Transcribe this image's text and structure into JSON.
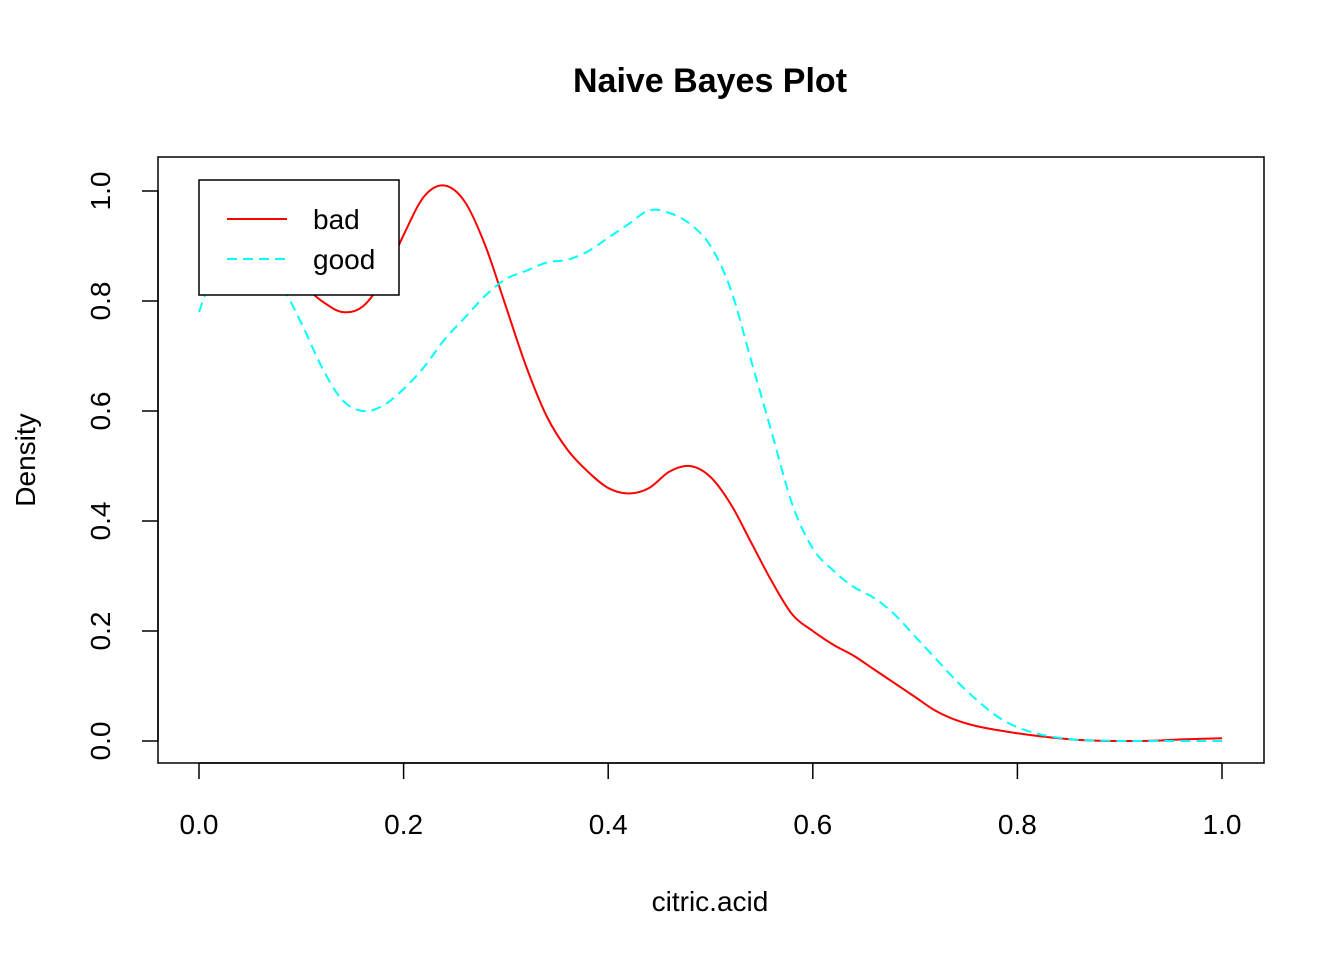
{
  "chart_data": {
    "type": "line",
    "title": "Naive Bayes Plot",
    "xlabel": "citric.acid",
    "ylabel": "Density",
    "xlim": [
      0.0,
      1.0
    ],
    "ylim": [
      0.0,
      1.0
    ],
    "x_ticks": [
      "0.0",
      "0.2",
      "0.4",
      "0.6",
      "0.8",
      "1.0"
    ],
    "y_ticks": [
      "0.0",
      "0.2",
      "0.4",
      "0.6",
      "0.8",
      "1.0"
    ],
    "grid": false,
    "legend_position": "top-left",
    "series": [
      {
        "name": "bad",
        "color": "#ff0000",
        "dash": "solid",
        "points": [
          [
            0.0,
            0.93
          ],
          [
            0.02,
            0.92
          ],
          [
            0.04,
            0.9
          ],
          [
            0.06,
            0.88
          ],
          [
            0.08,
            0.85
          ],
          [
            0.1,
            0.83
          ],
          [
            0.12,
            0.8
          ],
          [
            0.14,
            0.78
          ],
          [
            0.16,
            0.79
          ],
          [
            0.18,
            0.84
          ],
          [
            0.2,
            0.92
          ],
          [
            0.22,
            0.99
          ],
          [
            0.24,
            1.01
          ],
          [
            0.26,
            0.98
          ],
          [
            0.28,
            0.9
          ],
          [
            0.3,
            0.79
          ],
          [
            0.32,
            0.68
          ],
          [
            0.34,
            0.59
          ],
          [
            0.36,
            0.53
          ],
          [
            0.38,
            0.49
          ],
          [
            0.4,
            0.46
          ],
          [
            0.42,
            0.45
          ],
          [
            0.44,
            0.46
          ],
          [
            0.46,
            0.49
          ],
          [
            0.48,
            0.5
          ],
          [
            0.5,
            0.48
          ],
          [
            0.52,
            0.43
          ],
          [
            0.54,
            0.36
          ],
          [
            0.56,
            0.29
          ],
          [
            0.58,
            0.23
          ],
          [
            0.6,
            0.2
          ],
          [
            0.62,
            0.175
          ],
          [
            0.64,
            0.155
          ],
          [
            0.66,
            0.13
          ],
          [
            0.68,
            0.105
          ],
          [
            0.7,
            0.08
          ],
          [
            0.72,
            0.055
          ],
          [
            0.74,
            0.038
          ],
          [
            0.76,
            0.027
          ],
          [
            0.78,
            0.02
          ],
          [
            0.8,
            0.014
          ],
          [
            0.82,
            0.009
          ],
          [
            0.84,
            0.005
          ],
          [
            0.86,
            0.002
          ],
          [
            0.88,
            0.0005
          ],
          [
            0.9,
            0.0
          ],
          [
            0.92,
            0.0
          ],
          [
            0.94,
            0.001
          ],
          [
            0.96,
            0.003
          ],
          [
            0.98,
            0.004
          ],
          [
            1.0,
            0.005
          ]
        ]
      },
      {
        "name": "good",
        "color": "#00ffff",
        "dash": "dashed",
        "points": [
          [
            0.0,
            0.78
          ],
          [
            0.01,
            0.83
          ],
          [
            0.02,
            0.86
          ],
          [
            0.04,
            0.88
          ],
          [
            0.06,
            0.87
          ],
          [
            0.08,
            0.83
          ],
          [
            0.1,
            0.76
          ],
          [
            0.12,
            0.68
          ],
          [
            0.14,
            0.62
          ],
          [
            0.16,
            0.6
          ],
          [
            0.18,
            0.61
          ],
          [
            0.2,
            0.64
          ],
          [
            0.22,
            0.68
          ],
          [
            0.24,
            0.73
          ],
          [
            0.26,
            0.77
          ],
          [
            0.28,
            0.81
          ],
          [
            0.3,
            0.84
          ],
          [
            0.32,
            0.855
          ],
          [
            0.34,
            0.87
          ],
          [
            0.36,
            0.875
          ],
          [
            0.38,
            0.89
          ],
          [
            0.4,
            0.915
          ],
          [
            0.42,
            0.94
          ],
          [
            0.44,
            0.965
          ],
          [
            0.46,
            0.96
          ],
          [
            0.48,
            0.94
          ],
          [
            0.5,
            0.9
          ],
          [
            0.52,
            0.82
          ],
          [
            0.54,
            0.69
          ],
          [
            0.56,
            0.56
          ],
          [
            0.58,
            0.43
          ],
          [
            0.6,
            0.35
          ],
          [
            0.62,
            0.31
          ],
          [
            0.64,
            0.28
          ],
          [
            0.66,
            0.26
          ],
          [
            0.68,
            0.23
          ],
          [
            0.7,
            0.19
          ],
          [
            0.72,
            0.15
          ],
          [
            0.74,
            0.11
          ],
          [
            0.76,
            0.075
          ],
          [
            0.78,
            0.045
          ],
          [
            0.8,
            0.025
          ],
          [
            0.82,
            0.013
          ],
          [
            0.84,
            0.006
          ],
          [
            0.86,
            0.002
          ],
          [
            0.88,
            0.001
          ],
          [
            0.9,
            0.0
          ],
          [
            0.92,
            0.0
          ],
          [
            0.94,
            0.0
          ],
          [
            0.96,
            0.0
          ],
          [
            0.98,
            0.0
          ],
          [
            1.0,
            0.0
          ]
        ]
      }
    ]
  }
}
